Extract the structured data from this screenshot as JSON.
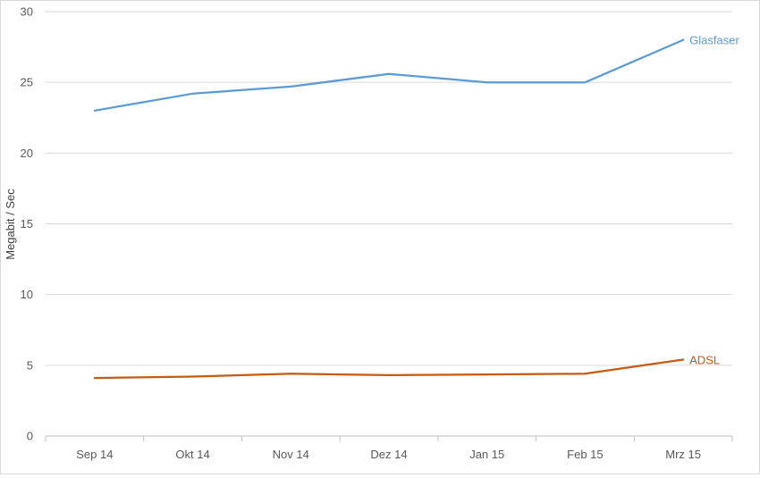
{
  "chart_data": {
    "type": "line",
    "title": "",
    "xlabel": "",
    "ylabel": "Megabit / Sec",
    "categories": [
      "Sep 14",
      "Okt 14",
      "Nov 14",
      "Dez 14",
      "Jan 15",
      "Feb 15",
      "Mrz 15"
    ],
    "ylim": [
      0,
      30
    ],
    "yticks": [
      0,
      5,
      10,
      15,
      20,
      25,
      30
    ],
    "grid": true,
    "legend": "inline labels at line ends",
    "series": [
      {
        "name": "Glasfaser",
        "values": [
          23.0,
          24.2,
          24.7,
          25.6,
          25.0,
          25.0,
          28.0
        ],
        "color": "#5b9bd5"
      },
      {
        "name": "ADSL",
        "values": [
          4.1,
          4.2,
          4.4,
          4.3,
          4.35,
          4.4,
          5.4
        ],
        "color": "#c55a11"
      }
    ]
  }
}
